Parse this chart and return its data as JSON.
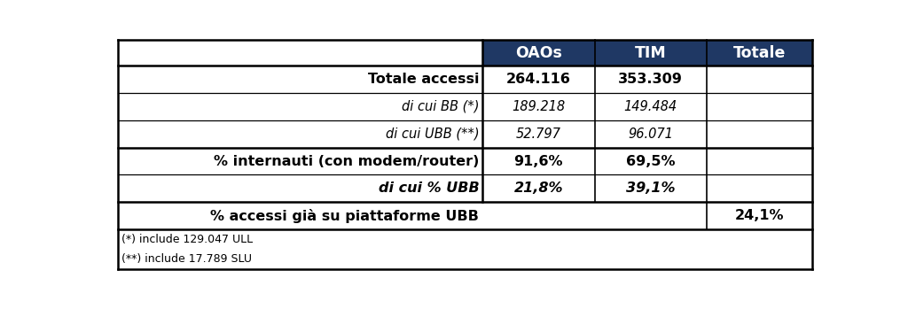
{
  "header": [
    "",
    "OAOs",
    "TIM",
    "Totale"
  ],
  "header_bg": "#1F3864",
  "header_text_color": "#FFFFFF",
  "rows": [
    {
      "label": "Totale accessi",
      "oaos": "264.116",
      "tim": "353.309",
      "totale": "",
      "bold": true,
      "italic": false,
      "thick_top": true
    },
    {
      "label": "di cui BB (*)",
      "oaos": "189.218",
      "tim": "149.484",
      "totale": "",
      "bold": false,
      "italic": true,
      "thick_top": false
    },
    {
      "label": "di cui UBB (**)",
      "oaos": "52.797",
      "tim": "96.071",
      "totale": "",
      "bold": false,
      "italic": true,
      "thick_top": false
    },
    {
      "label": "% internauti (con modem/router)",
      "oaos": "91,6%",
      "tim": "69,5%",
      "totale": "",
      "bold": true,
      "italic": false,
      "thick_top": true
    },
    {
      "label": "di cui % UBB",
      "oaos": "21,8%",
      "tim": "39,1%",
      "totale": "",
      "bold": true,
      "italic": true,
      "thick_top": false
    },
    {
      "label": "% accessi già su piattaforme UBB",
      "oaos": "",
      "tim": "",
      "totale": "24,1%",
      "bold": true,
      "italic": false,
      "thick_top": true
    }
  ],
  "footnotes": [
    "(*) include 129.047 ULL",
    "(**) include 17.789 SLU"
  ],
  "header_bg_cols": [
    1,
    2,
    3
  ],
  "last_row_totale_only": true,
  "border_color": "#000000",
  "text_color": "#000000",
  "fig_w": 10.24,
  "fig_h": 3.49,
  "dpi": 100
}
